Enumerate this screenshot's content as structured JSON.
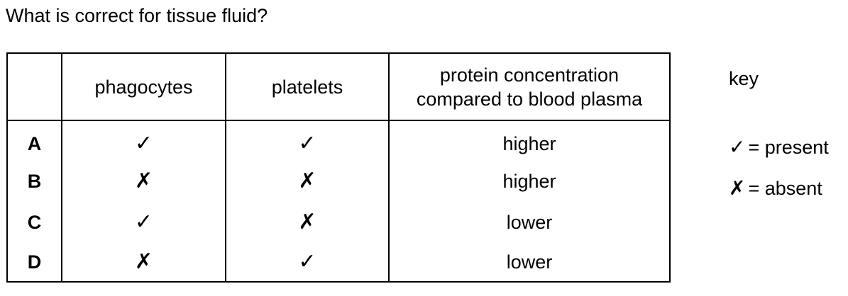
{
  "question": "What is correct for tissue fluid?",
  "table": {
    "headers": [
      "",
      "phagocytes",
      "platelets",
      "protein concentration compared to blood plasma"
    ],
    "rows": [
      {
        "letter": "A",
        "phagocytes": "✓",
        "platelets": "✓",
        "protein": "higher"
      },
      {
        "letter": "B",
        "phagocytes": "✗",
        "platelets": "✗",
        "protein": "higher"
      },
      {
        "letter": "C",
        "phagocytes": "✓",
        "platelets": "✗",
        "protein": "lower"
      },
      {
        "letter": "D",
        "phagocytes": "✗",
        "platelets": "✓",
        "protein": "lower"
      }
    ]
  },
  "key": {
    "title": "key",
    "present_symbol": "✓",
    "present_text": "= present",
    "absent_symbol": "✗",
    "absent_text": "= absent"
  }
}
